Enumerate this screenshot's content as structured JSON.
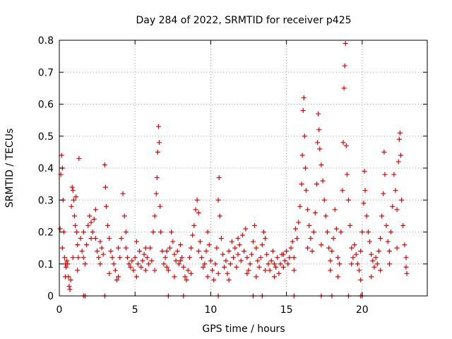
{
  "chart_data": {
    "type": "scatter",
    "title": "Day 284 of 2022, SRMTID for receiver p425",
    "xlabel": "GPS time / hours",
    "ylabel": "SRMTID / TECUs",
    "xlim": [
      0,
      24.3
    ],
    "ylim": [
      0,
      0.8
    ],
    "x_ticks": [
      0,
      5,
      10,
      15,
      20
    ],
    "x_tick_labels": [
      "0",
      "5",
      "10",
      "15",
      "20"
    ],
    "y_ticks": [
      0,
      0.1,
      0.2,
      0.3,
      0.4,
      0.5,
      0.6,
      0.7,
      0.8
    ],
    "y_tick_labels": [
      "0",
      "0.1",
      "0.2",
      "0.3",
      "0.4",
      "0.5",
      "0.6",
      "0.7",
      "0.8"
    ],
    "grid": true,
    "marker": "+",
    "color": "#e00000",
    "series": [
      {
        "name": "SRMTID",
        "points": [
          [
            0.05,
            0.21
          ],
          [
            0.1,
            0.38
          ],
          [
            0.15,
            0.44
          ],
          [
            0.2,
            0.4
          ],
          [
            0.25,
            0.3
          ],
          [
            0.3,
            0.2
          ],
          [
            0.35,
            0.12
          ],
          [
            0.4,
            0.1
          ],
          [
            0.45,
            0.09
          ],
          [
            0.5,
            0.11
          ],
          [
            0.55,
            0.1
          ],
          [
            0.6,
            0.06
          ],
          [
            0.65,
            0.03
          ],
          [
            0.7,
            0.02
          ],
          [
            0.75,
            0.05
          ],
          [
            0.8,
            0.28
          ],
          [
            0.85,
            0.34
          ],
          [
            0.9,
            0.33
          ],
          [
            0.95,
            0.3
          ],
          [
            1.0,
            0.25
          ],
          [
            1.05,
            0.22
          ],
          [
            1.1,
            0.31
          ],
          [
            1.15,
            0.2
          ],
          [
            1.2,
            0.16
          ],
          [
            1.25,
            0.12
          ],
          [
            1.3,
            0.43
          ],
          [
            1.4,
            0.18
          ],
          [
            1.5,
            0.14
          ],
          [
            1.6,
            0.12
          ],
          [
            1.7,
            0.1
          ],
          [
            1.8,
            0.16
          ],
          [
            1.9,
            0.22
          ],
          [
            2.0,
            0.25
          ],
          [
            2.1,
            0.23
          ],
          [
            2.2,
            0.2
          ],
          [
            2.3,
            0.24
          ],
          [
            2.4,
            0.18
          ],
          [
            2.5,
            0.14
          ],
          [
            2.6,
            0.12
          ],
          [
            2.7,
            0.17
          ],
          [
            2.8,
            0.15
          ],
          [
            2.9,
            0.13
          ],
          [
            3.0,
            0.41
          ],
          [
            3.05,
            0.34
          ],
          [
            3.1,
            0.28
          ],
          [
            3.2,
            0.22
          ],
          [
            3.3,
            0.18
          ],
          [
            3.4,
            0.14
          ],
          [
            3.5,
            0.12
          ],
          [
            3.6,
            0.1
          ],
          [
            3.7,
            0.08
          ],
          [
            3.8,
            0.05
          ],
          [
            3.9,
            0.06
          ],
          [
            4.0,
            0.12
          ],
          [
            4.1,
            0.18
          ],
          [
            4.2,
            0.32
          ],
          [
            4.3,
            0.25
          ],
          [
            4.4,
            0.15
          ],
          [
            4.5,
            0.12
          ],
          [
            4.6,
            0.1
          ],
          [
            4.7,
            0.09
          ],
          [
            4.8,
            0.11
          ],
          [
            4.9,
            0.08
          ],
          [
            5.0,
            0.12
          ],
          [
            5.1,
            0.17
          ],
          [
            5.2,
            0.1
          ],
          [
            5.3,
            0.14
          ],
          [
            5.4,
            0.09
          ],
          [
            5.5,
            0.11
          ],
          [
            5.6,
            0.13
          ],
          [
            5.7,
            0.08
          ],
          [
            5.8,
            0.12
          ],
          [
            5.9,
            0.1
          ],
          [
            6.0,
            0.15
          ],
          [
            6.1,
            0.11
          ],
          [
            6.2,
            0.2
          ],
          [
            6.3,
            0.25
          ],
          [
            6.4,
            0.32
          ],
          [
            6.45,
            0.37
          ],
          [
            6.5,
            0.45
          ],
          [
            6.55,
            0.53
          ],
          [
            6.6,
            0.48
          ],
          [
            6.65,
            0.28
          ],
          [
            6.7,
            0.2
          ],
          [
            6.8,
            0.14
          ],
          [
            6.9,
            0.1
          ],
          [
            7.0,
            0.12
          ],
          [
            7.1,
            0.09
          ],
          [
            7.2,
            0.08
          ],
          [
            7.3,
            0.15
          ],
          [
            7.4,
            0.2
          ],
          [
            7.5,
            0.17
          ],
          [
            7.6,
            0.13
          ],
          [
            7.7,
            0.11
          ],
          [
            7.8,
            0.14
          ],
          [
            7.9,
            0.1
          ],
          [
            8.0,
            0.16
          ],
          [
            8.1,
            0.12
          ],
          [
            8.2,
            0.09
          ],
          [
            8.3,
            0.06
          ],
          [
            8.4,
            0.05
          ],
          [
            8.5,
            0.08
          ],
          [
            8.6,
            0.12
          ],
          [
            8.7,
            0.15
          ],
          [
            8.8,
            0.19
          ],
          [
            8.9,
            0.22
          ],
          [
            9.0,
            0.27
          ],
          [
            9.1,
            0.3
          ],
          [
            9.2,
            0.26
          ],
          [
            9.3,
            0.17
          ],
          [
            9.4,
            0.12
          ],
          [
            9.5,
            0.09
          ],
          [
            9.6,
            0.1
          ],
          [
            9.7,
            0.14
          ],
          [
            9.8,
            0.2
          ],
          [
            9.9,
            0.16
          ],
          [
            10.0,
            0.11
          ],
          [
            10.1,
            0.08
          ],
          [
            10.2,
            0.05
          ],
          [
            10.3,
            0.1
          ],
          [
            10.4,
            0.15
          ],
          [
            10.5,
            0.3
          ],
          [
            10.55,
            0.37
          ],
          [
            10.6,
            0.25
          ],
          [
            10.7,
            0.18
          ],
          [
            10.8,
            0.13
          ],
          [
            10.9,
            0.09
          ],
          [
            11.0,
            0.11
          ],
          [
            11.1,
            0.07
          ],
          [
            11.2,
            0.14
          ],
          [
            11.3,
            0.1
          ],
          [
            11.4,
            0.17
          ],
          [
            11.5,
            0.12
          ],
          [
            11.6,
            0.15
          ],
          [
            11.7,
            0.09
          ],
          [
            11.8,
            0.13
          ],
          [
            11.9,
            0.16
          ],
          [
            12.0,
            0.11
          ],
          [
            12.1,
            0.19
          ],
          [
            12.2,
            0.14
          ],
          [
            12.3,
            0.21
          ],
          [
            12.4,
            0.12
          ],
          [
            12.5,
            0.08
          ],
          [
            12.6,
            0.1
          ],
          [
            12.7,
            0.13
          ],
          [
            12.8,
            0.17
          ],
          [
            12.9,
            0.22
          ],
          [
            13.0,
            0.15
          ],
          [
            13.1,
            0.11
          ],
          [
            13.2,
            0.09
          ],
          [
            13.3,
            0.12
          ],
          [
            13.4,
            0.16
          ],
          [
            13.5,
            0.2
          ],
          [
            13.6,
            0.18
          ],
          [
            13.7,
            0.13
          ],
          [
            13.8,
            0.1
          ],
          [
            13.9,
            0.08
          ],
          [
            14.0,
            0.11
          ],
          [
            14.1,
            0.14
          ],
          [
            14.2,
            0.1
          ],
          [
            14.3,
            0.09
          ],
          [
            14.4,
            0.12
          ],
          [
            14.5,
            0.07
          ],
          [
            14.6,
            0.1
          ],
          [
            14.7,
            0.13
          ],
          [
            14.8,
            0.09
          ],
          [
            14.9,
            0.11
          ],
          [
            15.0,
            0.14
          ],
          [
            15.1,
            0.1
          ],
          [
            15.2,
            0.12
          ],
          [
            15.3,
            0.15
          ],
          [
            15.4,
            0.17
          ],
          [
            15.5,
            0.12
          ],
          [
            15.6,
            0.21
          ],
          [
            15.7,
            0.18
          ],
          [
            15.8,
            0.23
          ],
          [
            15.9,
            0.28
          ],
          [
            16.0,
            0.35
          ],
          [
            16.05,
            0.44
          ],
          [
            16.1,
            0.58
          ],
          [
            16.15,
            0.62
          ],
          [
            16.2,
            0.5
          ],
          [
            16.25,
            0.4
          ],
          [
            16.3,
            0.33
          ],
          [
            16.4,
            0.27
          ],
          [
            16.5,
            0.22
          ],
          [
            16.6,
            0.18
          ],
          [
            16.7,
            0.14
          ],
          [
            16.8,
            0.2
          ],
          [
            16.9,
            0.26
          ],
          [
            17.0,
            0.35
          ],
          [
            17.05,
            0.48
          ],
          [
            17.1,
            0.57
          ],
          [
            17.15,
            0.52
          ],
          [
            17.2,
            0.46
          ],
          [
            17.3,
            0.41
          ],
          [
            17.4,
            0.36
          ],
          [
            17.5,
            0.3
          ],
          [
            17.6,
            0.25
          ],
          [
            17.7,
            0.2
          ],
          [
            17.8,
            0.15
          ],
          [
            17.9,
            0.11
          ],
          [
            18.0,
            0.14
          ],
          [
            18.1,
            0.18
          ],
          [
            18.2,
            0.27
          ],
          [
            18.3,
            0.21
          ],
          [
            18.4,
            0.12
          ],
          [
            18.5,
            0.1
          ],
          [
            18.6,
            0.2
          ],
          [
            18.7,
            0.33
          ],
          [
            18.75,
            0.48
          ],
          [
            18.8,
            0.65
          ],
          [
            18.85,
            0.72
          ],
          [
            18.9,
            0.79
          ],
          [
            18.95,
            0.47
          ],
          [
            19.0,
            0.38
          ],
          [
            19.1,
            0.3
          ],
          [
            19.2,
            0.22
          ],
          [
            19.3,
            0.15
          ],
          [
            19.4,
            0.12
          ],
          [
            19.5,
            0.16
          ],
          [
            19.6,
            0.13
          ],
          [
            19.7,
            0.1
          ],
          [
            19.8,
            0.08
          ],
          [
            19.9,
            0.14
          ],
          [
            20.0,
            0.2
          ],
          [
            20.1,
            0.29
          ],
          [
            20.15,
            0.39
          ],
          [
            20.2,
            0.33
          ],
          [
            20.3,
            0.25
          ],
          [
            20.4,
            0.2
          ],
          [
            20.5,
            0.17
          ],
          [
            20.6,
            0.13
          ],
          [
            20.7,
            0.11
          ],
          [
            20.8,
            0.09
          ],
          [
            20.9,
            0.12
          ],
          [
            21.0,
            0.1
          ],
          [
            21.1,
            0.14
          ],
          [
            21.2,
            0.18
          ],
          [
            21.3,
            0.25
          ],
          [
            21.4,
            0.32
          ],
          [
            21.45,
            0.45
          ],
          [
            21.5,
            0.38
          ],
          [
            21.6,
            0.22
          ],
          [
            21.7,
            0.17
          ],
          [
            21.8,
            0.14
          ],
          [
            21.9,
            0.2
          ],
          [
            22.0,
            0.28
          ],
          [
            22.1,
            0.38
          ],
          [
            22.2,
            0.33
          ],
          [
            22.3,
            0.27
          ],
          [
            22.4,
            0.42
          ],
          [
            22.45,
            0.49
          ],
          [
            22.5,
            0.51
          ],
          [
            22.55,
            0.44
          ],
          [
            22.6,
            0.3
          ],
          [
            22.7,
            0.22
          ],
          [
            22.8,
            0.16
          ],
          [
            22.9,
            0.12
          ],
          [
            22.95,
            0.07
          ],
          [
            0.2,
            0.15
          ],
          [
            0.4,
            0.06
          ],
          [
            0.9,
            0.12
          ],
          [
            1.2,
            0.08
          ],
          [
            1.6,
            0.2
          ],
          [
            2.1,
            0.18
          ],
          [
            2.4,
            0.27
          ],
          [
            2.7,
            0.1
          ],
          [
            3.3,
            0.07
          ],
          [
            3.9,
            0.15
          ],
          [
            4.4,
            0.2
          ],
          [
            5.1,
            0.06
          ],
          [
            5.7,
            0.15
          ],
          [
            6.3,
            0.08
          ],
          [
            7.1,
            0.14
          ],
          [
            7.6,
            0.06
          ],
          [
            8.0,
            0.11
          ],
          [
            8.7,
            0.07
          ],
          [
            9.2,
            0.14
          ],
          [
            9.8,
            0.06
          ],
          [
            10.5,
            0.07
          ],
          [
            11.2,
            0.05
          ],
          [
            11.8,
            0.18
          ],
          [
            12.4,
            0.07
          ],
          [
            13.0,
            0.06
          ],
          [
            13.6,
            0.08
          ],
          [
            14.2,
            0.06
          ],
          [
            14.8,
            0.13
          ],
          [
            15.5,
            0.08
          ],
          [
            16.4,
            0.15
          ],
          [
            17.3,
            0.16
          ],
          [
            17.9,
            0.08
          ],
          [
            18.4,
            0.06
          ],
          [
            19.3,
            0.1
          ],
          [
            19.9,
            0.05
          ],
          [
            20.6,
            0.06
          ],
          [
            21.2,
            0.08
          ],
          [
            21.8,
            0.1
          ],
          [
            22.3,
            0.15
          ],
          [
            22.9,
            0.09
          ],
          [
            1.6,
            0.0
          ],
          [
            1.7,
            0.0
          ],
          [
            3.0,
            0.0
          ],
          [
            7.2,
            0.0
          ],
          [
            8.2,
            0.0
          ],
          [
            10.5,
            0.0
          ],
          [
            12.8,
            0.0
          ],
          [
            13.4,
            0.0
          ],
          [
            15.5,
            0.0
          ],
          [
            17.3,
            0.0
          ],
          [
            18.0,
            0.0
          ],
          [
            19.1,
            0.0
          ],
          [
            19.9,
            0.0
          ],
          [
            20.0,
            0.0
          ]
        ]
      }
    ]
  }
}
